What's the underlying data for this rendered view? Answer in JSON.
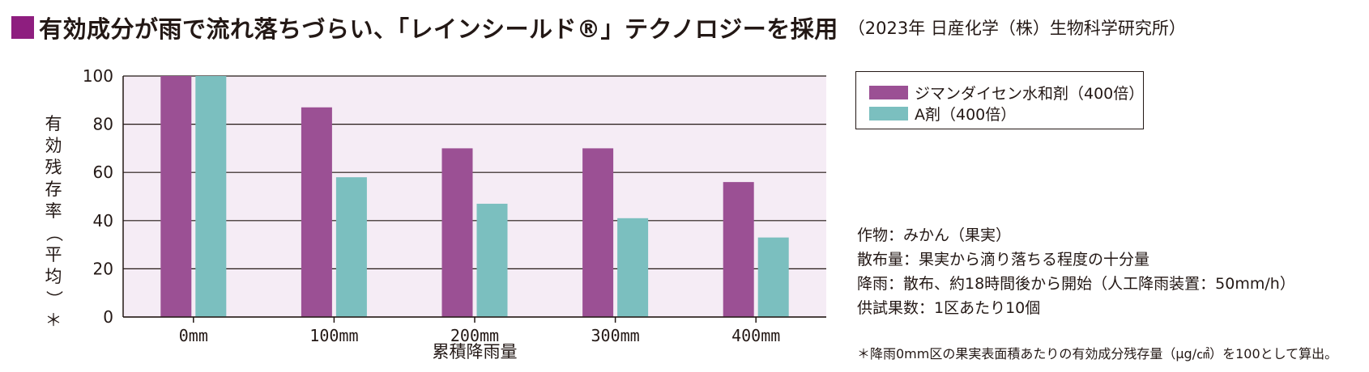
{
  "title": {
    "main": "有効成分が雨で流れ落ちづらい、「レインシールド®」テクノロジーを採用",
    "source": "（2023年 日産化学（株）生物科学研究所）",
    "square_color": "#8e1e7f"
  },
  "chart_data": {
    "type": "bar",
    "categories": [
      "0mm",
      "100mm",
      "200mm",
      "300mm",
      "400mm"
    ],
    "series": [
      {
        "name": "ジマンダイセン水和剤（400倍）",
        "values": [
          100,
          87,
          70,
          70,
          56
        ],
        "color": "#9b5094"
      },
      {
        "name": "A剤（400倍）",
        "values": [
          100,
          58,
          47,
          41,
          33
        ],
        "color": "#7bbfbf"
      }
    ],
    "xlabel": "累積降雨量",
    "ylabel": "有効残存率（平均）＊",
    "ylim": [
      0,
      100
    ],
    "yticks": [
      0,
      20,
      40,
      60,
      80,
      100
    ],
    "grid": true,
    "plot_background": "#f5ecf5",
    "legend_position": "right"
  },
  "notes": [
    "作物：みかん（果実）",
    "散布量：果実から滴り落ちる程度の十分量",
    "降雨：散布、約18時間後から開始（人工降雨装置：50mm/h）",
    "供試果数：1区あたり10個"
  ],
  "footnote": "＊降雨0mm区の果実表面積あたりの有効成分残存量（μg/㎠）を100として算出。"
}
